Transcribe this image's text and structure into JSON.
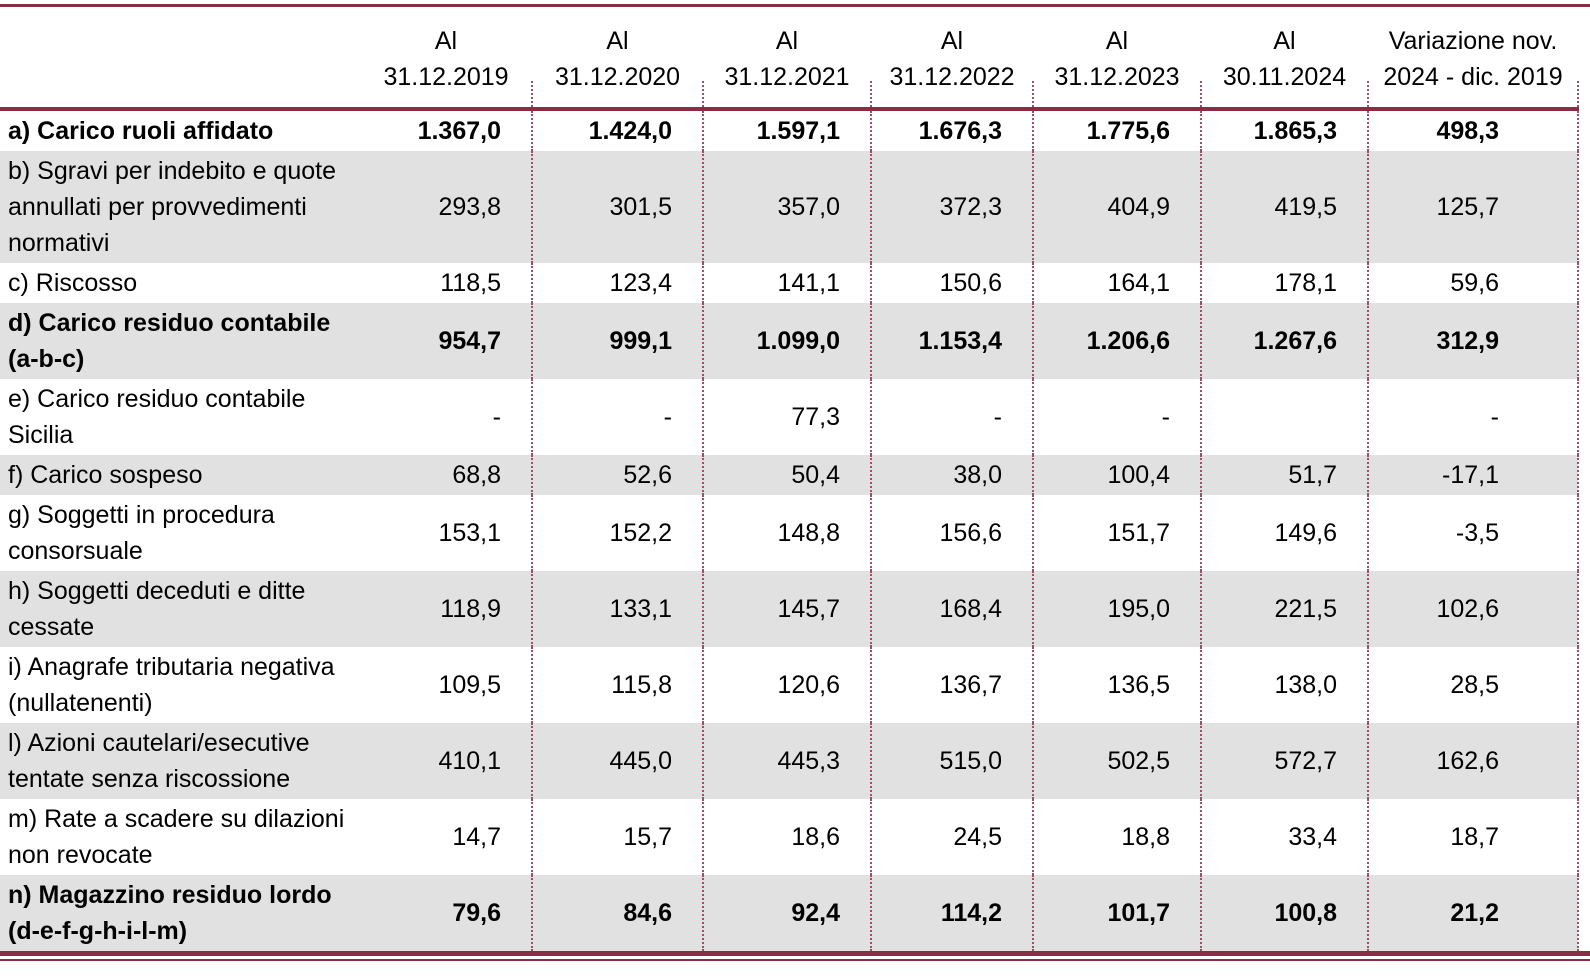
{
  "colors": {
    "accent_border": "#882d44",
    "dotted_separator": "#a14f66",
    "row_shade": "#e1e1e1",
    "text": "#000000"
  },
  "table": {
    "columns": [
      {
        "id": "label",
        "label": ""
      },
      {
        "id": "al-31-12-2019",
        "label": "Al\n31.12.2019"
      },
      {
        "id": "al-31-12-2020",
        "label": "Al\n31.12.2020"
      },
      {
        "id": "al-31-12-2021",
        "label": "Al\n31.12.2021"
      },
      {
        "id": "al-31-12-2022",
        "label": "Al\n31.12.2022"
      },
      {
        "id": "al-31-12-2023",
        "label": "Al\n31.12.2023"
      },
      {
        "id": "al-30-11-2024",
        "label": "Al\n30.11.2024"
      },
      {
        "id": "variazione",
        "label": "Variazione nov.\n2024 - dic. 2019"
      }
    ],
    "rows": [
      {
        "id": "a",
        "label": "a) Carico ruoli affidato",
        "values": [
          "1.367,0",
          "1.424,0",
          "1.597,1",
          "1.676,3",
          "1.775,6",
          "1.865,3",
          "498,3"
        ],
        "bold": true,
        "shaded": false
      },
      {
        "id": "b",
        "label": "b) Sgravi per indebito e quote\nannullati per provvedimenti\nnormativi",
        "values": [
          "293,8",
          "301,5",
          "357,0",
          "372,3",
          "404,9",
          "419,5",
          "125,7"
        ],
        "bold": false,
        "shaded": true
      },
      {
        "id": "c",
        "label": "c) Riscosso",
        "values": [
          "118,5",
          "123,4",
          "141,1",
          "150,6",
          "164,1",
          "178,1",
          "59,6"
        ],
        "bold": false,
        "shaded": false
      },
      {
        "id": "d",
        "label": "d) Carico residuo contabile\n(a-b-c)",
        "values": [
          "954,7",
          "999,1",
          "1.099,0",
          "1.153,4",
          "1.206,6",
          "1.267,6",
          "312,9"
        ],
        "bold": true,
        "shaded": true
      },
      {
        "id": "e",
        "label": "e) Carico residuo contabile\nSicilia",
        "values": [
          "-",
          "-",
          "77,3",
          "-",
          "-",
          "",
          "-"
        ],
        "bold": false,
        "shaded": false
      },
      {
        "id": "f",
        "label": "f) Carico sospeso",
        "values": [
          "68,8",
          "52,6",
          "50,4",
          "38,0",
          "100,4",
          "51,7",
          "-17,1"
        ],
        "bold": false,
        "shaded": true
      },
      {
        "id": "g",
        "label": "g) Soggetti in procedura\nconsorsuale",
        "values": [
          "153,1",
          "152,2",
          "148,8",
          "156,6",
          "151,7",
          "149,6",
          "-3,5"
        ],
        "bold": false,
        "shaded": false
      },
      {
        "id": "h",
        "label": "h) Soggetti deceduti e ditte\ncessate",
        "values": [
          "118,9",
          "133,1",
          "145,7",
          "168,4",
          "195,0",
          "221,5",
          "102,6"
        ],
        "bold": false,
        "shaded": true
      },
      {
        "id": "i",
        "label": "i) Anagrafe tributaria negativa\n(nullatenenti)",
        "values": [
          "109,5",
          "115,8",
          "120,6",
          "136,7",
          "136,5",
          "138,0",
          "28,5"
        ],
        "bold": false,
        "shaded": false
      },
      {
        "id": "l",
        "label": "l) Azioni cautelari/esecutive\ntentate senza riscossione",
        "values": [
          "410,1",
          "445,0",
          "445,3",
          "515,0",
          "502,5",
          "572,7",
          "162,6"
        ],
        "bold": false,
        "shaded": true
      },
      {
        "id": "m",
        "label": "m) Rate a scadere su dilazioni\nnon revocate",
        "values": [
          "14,7",
          "15,7",
          "18,6",
          "24,5",
          "18,8",
          "33,4",
          "18,7"
        ],
        "bold": false,
        "shaded": false
      },
      {
        "id": "n",
        "label": "n) Magazzino residuo lordo\n(d-e-f-g-h-i-l-m)",
        "values": [
          "79,6",
          "84,6",
          "92,4",
          "114,2",
          "101,7",
          "100,8",
          "21,2"
        ],
        "bold": true,
        "shaded": true
      }
    ]
  }
}
